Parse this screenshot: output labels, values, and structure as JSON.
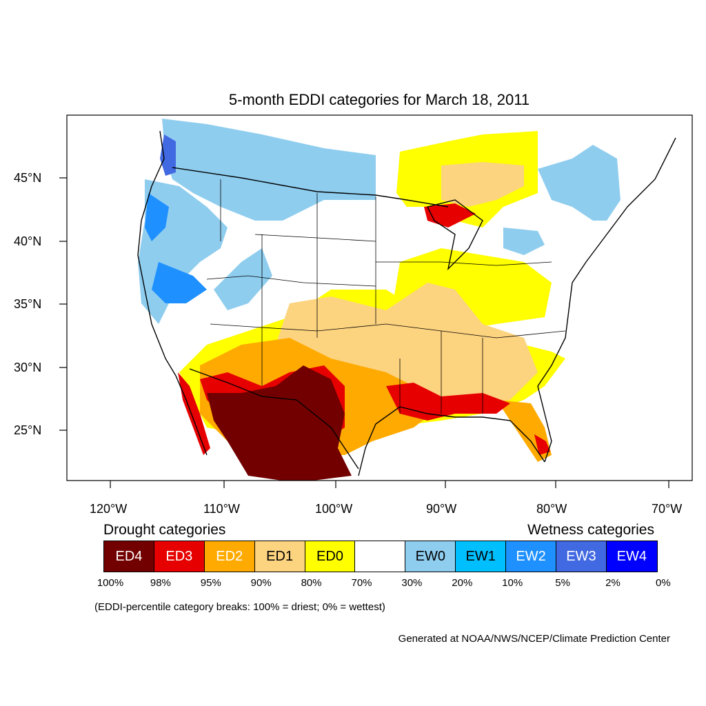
{
  "title": "5-month EDDI categories for March 18, 2011",
  "axes": {
    "lat_labels": [
      "45°N",
      "40°N",
      "35°N",
      "30°N",
      "25°N"
    ],
    "lon_labels": [
      "120°W",
      "110°W",
      "100°W",
      "90°W",
      "80°W",
      "70°W"
    ]
  },
  "legend": {
    "drought_heading": "Drought categories",
    "wetness_heading": "Wetness categories",
    "categories": [
      {
        "label": "ED4",
        "color": "#730000",
        "text_color": "#ffffff"
      },
      {
        "label": "ED3",
        "color": "#e60000",
        "text_color": "#ffffff"
      },
      {
        "label": "ED2",
        "color": "#ffaa00",
        "text_color": "#ffffff"
      },
      {
        "label": "ED1",
        "color": "#fcd37f",
        "text_color": "#000000"
      },
      {
        "label": "ED0",
        "color": "#ffff00",
        "text_color": "#000000"
      },
      {
        "label": "",
        "color": "#ffffff",
        "text_color": "#000000"
      },
      {
        "label": "EW0",
        "color": "#8fcdef",
        "text_color": "#000000"
      },
      {
        "label": "EW1",
        "color": "#00bfff",
        "text_color": "#000000"
      },
      {
        "label": "EW2",
        "color": "#1e90ff",
        "text_color": "#ffffff"
      },
      {
        "label": "EW3",
        "color": "#4169e1",
        "text_color": "#ffffff"
      },
      {
        "label": "EW4",
        "color": "#0000ff",
        "text_color": "#ffffff"
      }
    ],
    "breaks": [
      "100%",
      "98%",
      "95%",
      "90%",
      "80%",
      "70%",
      "30%",
      "20%",
      "10%",
      "5%",
      "2%",
      "0%"
    ],
    "note": "(EDDI-percentile category breaks: 100% = driest; 0% = wettest)"
  },
  "credit": "Generated at NOAA/NWS/NCEP/Climate Prediction Center"
}
